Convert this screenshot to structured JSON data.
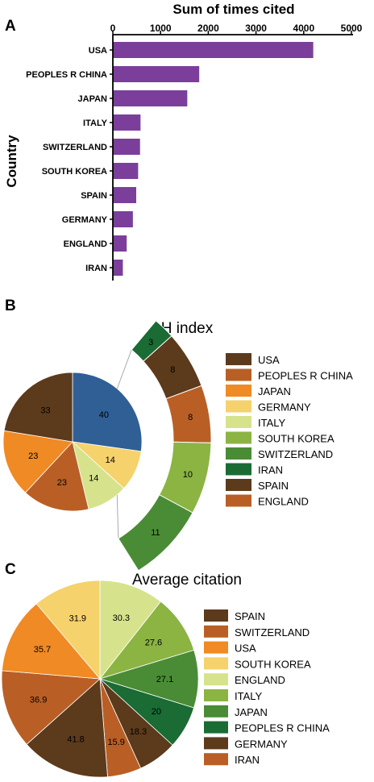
{
  "chart_data": [
    {
      "panel": "A",
      "type": "bar",
      "orientation": "horizontal",
      "title": "Sum of times cited",
      "ylabel": "Country",
      "xlim": [
        0,
        5000
      ],
      "xticks": [
        "0",
        "1000",
        "2000",
        "3000",
        "4000",
        "5000"
      ],
      "categories": [
        "USA",
        "PEOPLES R CHINA",
        "JAPAN",
        "ITALY",
        "SWITZERLAND",
        "SOUTH KOREA",
        "SPAIN",
        "GERMANY",
        "ENGLAND",
        "IRAN"
      ],
      "values": [
        4200,
        1810,
        1560,
        580,
        570,
        530,
        490,
        420,
        290,
        210
      ],
      "color": "#7b3f9b"
    },
    {
      "panel": "B",
      "type": "pie",
      "title": "H index",
      "legend": [
        "USA",
        "PEOPLES R CHINA",
        "JAPAN",
        "GERMANY",
        "ITALY",
        "SOUTH KOREA",
        "SWITZERLAND",
        "IRAN",
        "SPAIN",
        "ENGLAND"
      ],
      "pie_slices": [
        {
          "value": 40,
          "label": "40",
          "color": "#2f5f95"
        },
        {
          "value": 14,
          "label": "14",
          "color": "#f5d26b"
        },
        {
          "value": 14,
          "label": "14",
          "color": "#d6e38c"
        },
        {
          "value": 23,
          "label": "23",
          "color": "#b95f25"
        },
        {
          "value": 23,
          "label": "23",
          "color": "#f08a24"
        },
        {
          "value": 33,
          "label": "33",
          "color": "#5c3a1c"
        }
      ],
      "bar_of_pie": [
        {
          "value": 3,
          "label": "3",
          "color": "#1a6b34"
        },
        {
          "value": 8,
          "label": "8",
          "color": "#5c3a1c"
        },
        {
          "value": 8,
          "label": "8",
          "color": "#b95f25"
        },
        {
          "value": 10,
          "label": "10",
          "color": "#8bb443"
        },
        {
          "value": 11,
          "label": "11",
          "color": "#4a8c35"
        }
      ]
    },
    {
      "panel": "C",
      "type": "pie",
      "title": "Average citation",
      "legend": [
        "SPAIN",
        "SWITZERLAND",
        "USA",
        "SOUTH KOREA",
        "ENGLAND",
        "ITALY",
        "JAPAN",
        "PEOPLES R CHINA",
        "GERMANY",
        "IRAN"
      ],
      "slices": [
        {
          "value": 30.3,
          "label": "30.3",
          "color": "#d6e38c"
        },
        {
          "value": 27.6,
          "label": "27.6",
          "color": "#8bb443"
        },
        {
          "value": 27.1,
          "label": "27.1",
          "color": "#4a8c35"
        },
        {
          "value": 20,
          "label": "20",
          "color": "#1a6b34"
        },
        {
          "value": 18.3,
          "label": "18.3",
          "color": "#5c3a1c"
        },
        {
          "value": 15.9,
          "label": "15.9",
          "color": "#b95f25"
        },
        {
          "value": 41.8,
          "label": "41.8",
          "color": "#5c3a1c"
        },
        {
          "value": 36.9,
          "label": "36.9",
          "color": "#b95f25"
        },
        {
          "value": 35.7,
          "label": "35.7",
          "color": "#f08a24"
        },
        {
          "value": 31.9,
          "label": "31.9",
          "color": "#f5d26b"
        }
      ]
    }
  ],
  "legend_colors": [
    "#5c3a1c",
    "#b95f25",
    "#f08a24",
    "#f5d26b",
    "#d6e38c",
    "#8bb443",
    "#4a8c35",
    "#1a6b34",
    "#5c3a1c",
    "#b95f25"
  ],
  "panels": {
    "a": "A",
    "b": "B",
    "c": "C"
  }
}
